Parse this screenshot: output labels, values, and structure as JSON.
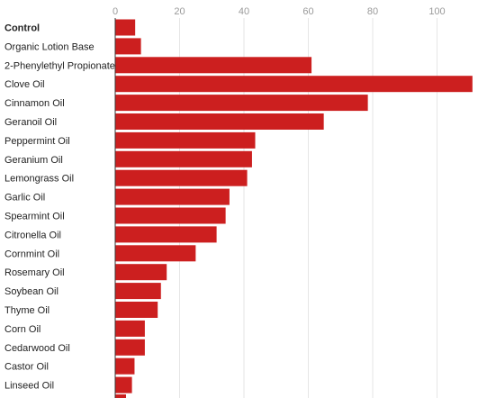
{
  "chart_data": {
    "type": "bar",
    "orientation": "horizontal",
    "title": "",
    "xlabel": "",
    "ylabel": "",
    "xlim": [
      0,
      110
    ],
    "xticks": [
      0,
      20,
      40,
      60,
      80,
      100
    ],
    "grid": true,
    "bar_color": "#cc1f1f",
    "categories": [
      "Control",
      "Organic Lotion Base",
      "2-Phenylethyl Propionate",
      "Clove Oil",
      "Cinnamon Oil",
      "Geranoil Oil",
      "Peppermint Oil",
      "Geranium Oil",
      "Lemongrass Oil",
      "Garlic Oil",
      "Spearmint Oil",
      "Citronella Oil",
      "Cornmint Oil",
      "Rosemary Oil",
      "Soybean Oil",
      "Thyme Oil",
      "Corn Oil",
      "Cedarwood Oil",
      "Castor Oil",
      "Linseed Oil"
    ],
    "values": [
      6.2,
      8.0,
      61.0,
      111.0,
      78.5,
      64.8,
      43.5,
      42.5,
      41.0,
      35.5,
      34.3,
      31.5,
      25.0,
      16.0,
      14.2,
      13.2,
      9.2,
      9.2,
      6.0,
      5.2
    ]
  }
}
